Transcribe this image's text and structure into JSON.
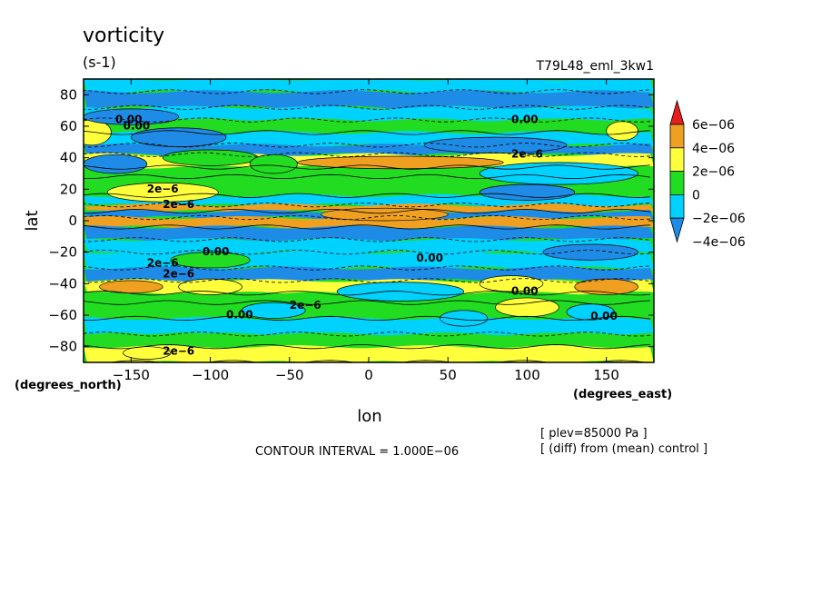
{
  "chart_data": {
    "type": "heatmap",
    "title": "vorticity",
    "units": "(s-1)",
    "run_label": "T79L48_eml_3kw1",
    "xlabel": "lon",
    "ylabel": "lat",
    "x_units": "(degrees_east)",
    "y_units": "(degrees_north)",
    "xlim": [
      -180,
      180
    ],
    "ylim": [
      -90,
      90
    ],
    "x_ticks": [
      -150,
      -100,
      -50,
      0,
      50,
      100,
      150
    ],
    "y_ticks": [
      80,
      60,
      40,
      20,
      0,
      -20,
      -40,
      -60,
      -80
    ],
    "x_tick_labels": [
      "−150",
      "−100",
      "−50",
      "0",
      "50",
      "100",
      "150"
    ],
    "y_tick_labels": [
      "80",
      "60",
      "40",
      "20",
      "0",
      "−20",
      "−40",
      "−60",
      "−80"
    ],
    "colorbar": {
      "levels": [
        -4e-06,
        -2e-06,
        0,
        2e-06,
        4e-06,
        6e-06
      ],
      "labels": [
        "−4e−06",
        "−2e−06",
        "0",
        "2e−06",
        "4e−06",
        "6e−06"
      ],
      "colors": [
        "#1e8ce6",
        "#00d2ff",
        "#22dc22",
        "#ffff3c",
        "#f0a020",
        "#e61e1e"
      ]
    },
    "contour_interval_text": "CONTOUR INTERVAL = 1.000E−06",
    "contour_labels": [
      "2e−6",
      "0.00"
    ],
    "annotations": [
      "[ plev=85000 Pa ]",
      "[ (diff) from (mean) control ]"
    ],
    "zonal_bands": [
      {
        "lat_max": 90,
        "lat_min": 82,
        "level": -1e-06
      },
      {
        "lat_max": 82,
        "lat_min": 72,
        "level": -2.5e-06
      },
      {
        "lat_max": 72,
        "lat_min": 64,
        "level": -1e-06
      },
      {
        "lat_max": 64,
        "lat_min": 56,
        "level": 1e-06
      },
      {
        "lat_max": 56,
        "lat_min": 48,
        "level": -1e-06
      },
      {
        "lat_max": 48,
        "lat_min": 42,
        "level": -3e-06
      },
      {
        "lat_max": 42,
        "lat_min": 34,
        "level": 3e-06
      },
      {
        "lat_max": 34,
        "lat_min": 28,
        "level": 1e-06
      },
      {
        "lat_max": 28,
        "lat_min": 16,
        "level": 1e-06
      },
      {
        "lat_max": 16,
        "lat_min": 10,
        "level": -1e-06
      },
      {
        "lat_max": 10,
        "lat_min": 6,
        "level": 4e-06
      },
      {
        "lat_max": 6,
        "lat_min": 2,
        "level": -3e-06
      },
      {
        "lat_max": 2,
        "lat_min": -4,
        "level": 4e-06
      },
      {
        "lat_max": -4,
        "lat_min": -12,
        "level": -3e-06
      },
      {
        "lat_max": -12,
        "lat_min": -20,
        "level": -1e-06
      },
      {
        "lat_max": -20,
        "lat_min": -30,
        "level": -1e-06
      },
      {
        "lat_max": -30,
        "lat_min": -38,
        "level": -3e-06
      },
      {
        "lat_max": -38,
        "lat_min": -46,
        "level": 3e-06
      },
      {
        "lat_max": -46,
        "lat_min": -52,
        "level": 1e-06
      },
      {
        "lat_max": -52,
        "lat_min": -62,
        "level": 1e-06
      },
      {
        "lat_max": -62,
        "lat_min": -72,
        "level": -1e-06
      },
      {
        "lat_max": -72,
        "lat_min": -80,
        "level": 1e-06
      },
      {
        "lat_max": -80,
        "lat_min": -90,
        "level": 2.5e-06
      }
    ],
    "features": [
      {
        "lon": -175,
        "lat": 56,
        "w": 25,
        "h": 8,
        "level": 3e-06
      },
      {
        "lon": 160,
        "lat": 57,
        "w": 20,
        "h": 6,
        "level": 3e-06
      },
      {
        "lon": -120,
        "lat": 53,
        "w": 60,
        "h": 6,
        "level": -3e-06
      },
      {
        "lon": -150,
        "lat": 66,
        "w": 60,
        "h": 5,
        "level": -3e-06
      },
      {
        "lon": 80,
        "lat": 48,
        "w": 90,
        "h": 5,
        "level": -3e-06
      },
      {
        "lon": -160,
        "lat": 36,
        "w": 40,
        "h": 6,
        "level": -3e-06
      },
      {
        "lon": 20,
        "lat": 37,
        "w": 130,
        "h": 4,
        "level": 5e-06
      },
      {
        "lon": -100,
        "lat": 40,
        "w": 60,
        "h": 5,
        "level": 1e-06
      },
      {
        "lon": -60,
        "lat": 36,
        "w": 30,
        "h": 6,
        "level": 1e-06
      },
      {
        "lon": 120,
        "lat": 30,
        "w": 100,
        "h": 7,
        "level": -1e-06
      },
      {
        "lon": -130,
        "lat": 18,
        "w": 70,
        "h": 6,
        "level": 3e-06
      },
      {
        "lon": 100,
        "lat": 18,
        "w": 60,
        "h": 5,
        "level": -3e-06
      },
      {
        "lon": 10,
        "lat": 4,
        "w": 80,
        "h": 4,
        "level": 5e-06
      },
      {
        "lon": 140,
        "lat": -20,
        "w": 60,
        "h": 5,
        "level": -3e-06
      },
      {
        "lon": -100,
        "lat": -25,
        "w": 50,
        "h": 5,
        "level": 1e-06
      },
      {
        "lon": -150,
        "lat": -42,
        "w": 40,
        "h": 4,
        "level": 5e-06
      },
      {
        "lon": 150,
        "lat": -42,
        "w": 40,
        "h": 5,
        "level": 5e-06
      },
      {
        "lon": 90,
        "lat": -40,
        "w": 40,
        "h": 5,
        "level": 3e-06
      },
      {
        "lon": -100,
        "lat": -42,
        "w": 40,
        "h": 5,
        "level": 3e-06
      },
      {
        "lon": 20,
        "lat": -45,
        "w": 80,
        "h": 6,
        "level": -1e-06
      },
      {
        "lon": 60,
        "lat": -62,
        "w": 30,
        "h": 5,
        "level": -1e-06
      },
      {
        "lon": 140,
        "lat": -58,
        "w": 30,
        "h": 5,
        "level": -1e-06
      },
      {
        "lon": -60,
        "lat": -57,
        "w": 40,
        "h": 5,
        "level": -1e-06
      },
      {
        "lon": 100,
        "lat": -55,
        "w": 40,
        "h": 6,
        "level": 3e-06
      },
      {
        "lon": -140,
        "lat": -84,
        "w": 30,
        "h": 4,
        "level": 3e-06
      }
    ]
  }
}
